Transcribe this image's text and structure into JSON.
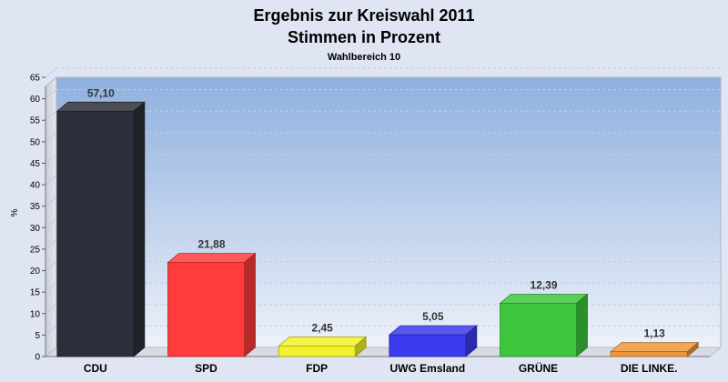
{
  "chart_data": {
    "type": "bar",
    "title": "Ergebnis zur Kreiswahl 2011",
    "subtitle": "Stimmen in Prozent",
    "caption": "Wahlbereich 10",
    "xlabel": "",
    "ylabel": "%",
    "ylim": [
      0,
      65
    ],
    "yticks": [
      "0",
      "5",
      "10",
      "15",
      "20",
      "25",
      "30",
      "35",
      "40",
      "45",
      "50",
      "55",
      "60",
      "65"
    ],
    "grid": true,
    "legend": "none",
    "categories": [
      "CDU",
      "SPD",
      "FDP",
      "UWG Emsland",
      "GRÜNE",
      "DIE LINKE."
    ],
    "values": [
      57.1,
      21.88,
      2.45,
      5.05,
      12.39,
      1.13
    ],
    "value_labels": [
      "57,10",
      "21,88",
      "2,45",
      "5,05",
      "12,39",
      "1,13"
    ],
    "colors": [
      "#2c2f3b",
      "#ff3b3b",
      "#f2f22a",
      "#3a3aee",
      "#3cc63c",
      "#f0963a"
    ]
  }
}
